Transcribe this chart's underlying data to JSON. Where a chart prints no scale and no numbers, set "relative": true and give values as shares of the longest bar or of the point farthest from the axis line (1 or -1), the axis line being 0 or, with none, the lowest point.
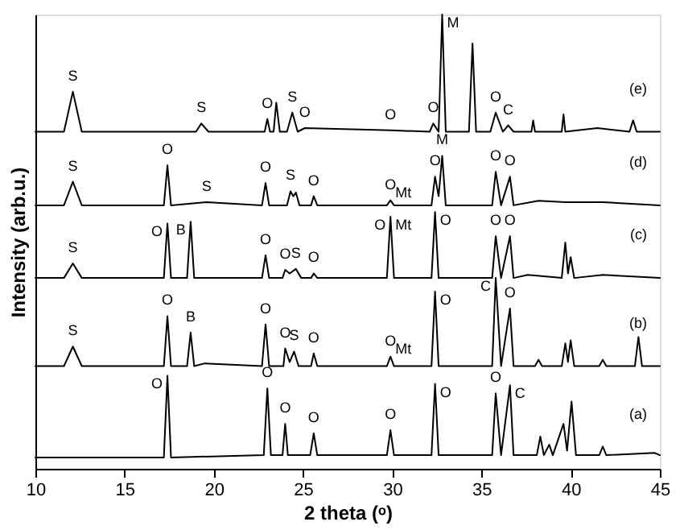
{
  "chart_data": {
    "type": "line",
    "relative": true,
    "xlabel": "2 theta (ᵒ)",
    "ylabel": "Intensity (arb.u.)",
    "xlim": [
      10,
      45
    ],
    "xticks": [
      10,
      15,
      20,
      25,
      30,
      35,
      40,
      45
    ],
    "grid": false,
    "marker": "none",
    "line_style": "solid",
    "series": [
      {
        "color": "#000000",
        "x": [
          10,
          17.2,
          17.4,
          17.6,
          22.8,
          23.0,
          23.2,
          23.85,
          24.0,
          24.15,
          25.4,
          25.6,
          25.8,
          29.7,
          29.9,
          30.1,
          32.2,
          32.4,
          32.6,
          35.6,
          35.8,
          36.1,
          36.6,
          36.8,
          38.1,
          38.3,
          38.5,
          38.8,
          39.0,
          39.6,
          39.8,
          40.05,
          40.3,
          41.6,
          41.8,
          42.0,
          44.7,
          45
        ],
        "values": [
          0.025,
          0.025,
          0.205,
          0.025,
          0.03,
          0.177,
          0.03,
          0.03,
          0.099,
          0.03,
          0.03,
          0.078,
          0.03,
          0.03,
          0.085,
          0.03,
          0.03,
          0.187,
          0.03,
          0.03,
          0.166,
          0.03,
          0.184,
          0.03,
          0.03,
          0.071,
          0.03,
          0.053,
          0.03,
          0.099,
          0.04,
          0.148,
          0.03,
          0.03,
          0.049,
          0.03,
          0.035,
          0.03
        ]
      },
      {
        "color": "#000000",
        "x": [
          10,
          11.6,
          12.1,
          12.6,
          17.2,
          17.4,
          17.6,
          18.5,
          18.7,
          18.9,
          19.5,
          22.7,
          22.9,
          23.1,
          23.9,
          24.0,
          24.25,
          24.5,
          24.75,
          25.45,
          25.6,
          25.8,
          29.7,
          29.9,
          30.1,
          32.2,
          32.4,
          32.6,
          35.6,
          35.8,
          36.1,
          36.6,
          36.8,
          38.0,
          38.2,
          38.4,
          39.5,
          39.7,
          39.85,
          40.0,
          40.2,
          41.6,
          41.8,
          42.0,
          43.6,
          43.8,
          44.0,
          45
        ],
        "values": [
          0.226,
          0.226,
          0.269,
          0.226,
          0.226,
          0.336,
          0.226,
          0.226,
          0.3,
          0.226,
          0.232,
          0.226,
          0.318,
          0.226,
          0.226,
          0.265,
          0.235,
          0.258,
          0.226,
          0.226,
          0.254,
          0.226,
          0.226,
          0.247,
          0.226,
          0.226,
          0.39,
          0.226,
          0.226,
          0.42,
          0.226,
          0.353,
          0.226,
          0.226,
          0.24,
          0.226,
          0.226,
          0.276,
          0.235,
          0.283,
          0.226,
          0.226,
          0.24,
          0.226,
          0.226,
          0.29,
          0.226,
          0.226
        ]
      },
      {
        "color": "#000000",
        "x": [
          10,
          11.6,
          12.1,
          12.6,
          17.2,
          17.4,
          17.6,
          18.5,
          18.7,
          18.9,
          22.7,
          22.9,
          23.1,
          23.85,
          24.0,
          24.25,
          24.6,
          24.9,
          25.45,
          25.6,
          25.8,
          29.7,
          29.9,
          30.1,
          32.2,
          32.4,
          32.6,
          35.6,
          35.8,
          36.1,
          36.6,
          36.8,
          37.6,
          39.5,
          39.7,
          39.85,
          40.0,
          40.2,
          41.8,
          45
        ],
        "values": [
          0.42,
          0.42,
          0.452,
          0.42,
          0.42,
          0.54,
          0.42,
          0.42,
          0.544,
          0.42,
          0.42,
          0.47,
          0.42,
          0.42,
          0.438,
          0.43,
          0.44,
          0.42,
          0.42,
          0.43,
          0.42,
          0.42,
          0.555,
          0.42,
          0.42,
          0.565,
          0.42,
          0.42,
          0.512,
          0.42,
          0.512,
          0.42,
          0.427,
          0.42,
          0.498,
          0.43,
          0.466,
          0.42,
          0.427,
          0.42
        ]
      },
      {
        "color": "#000000",
        "x": [
          10,
          11.6,
          12.1,
          12.6,
          17.2,
          17.4,
          17.6,
          19.6,
          22.7,
          22.9,
          23.1,
          24.1,
          24.3,
          24.45,
          24.6,
          24.8,
          25.45,
          25.6,
          25.8,
          29.7,
          29.9,
          30.1,
          32.2,
          32.4,
          32.6,
          32.8,
          33.0,
          35.6,
          35.8,
          36.1,
          36.6,
          36.8,
          38.2,
          39.7,
          41.8,
          45
        ],
        "values": [
          0.58,
          0.58,
          0.632,
          0.58,
          0.58,
          0.668,
          0.58,
          0.587,
          0.58,
          0.629,
          0.58,
          0.58,
          0.611,
          0.6,
          0.608,
          0.58,
          0.58,
          0.6,
          0.58,
          0.58,
          0.591,
          0.58,
          0.58,
          0.643,
          0.6,
          0.689,
          0.58,
          0.58,
          0.654,
          0.58,
          0.643,
          0.58,
          0.59,
          0.587,
          0.587,
          0.58
        ]
      },
      {
        "color": "#000000",
        "x": [
          10,
          11.6,
          12.1,
          12.6,
          19.0,
          19.3,
          19.7,
          22.85,
          23.0,
          23.15,
          23.35,
          23.5,
          23.7,
          24.1,
          24.4,
          24.7,
          25.1,
          29.9,
          32.1,
          32.3,
          32.6,
          32.8,
          33.0,
          34.3,
          34.5,
          34.7,
          35.5,
          35.8,
          36.2,
          36.5,
          36.8,
          37.8,
          37.9,
          38.0,
          39.5,
          39.6,
          39.7,
          41.5,
          43.3,
          43.5,
          43.7,
          45
        ],
        "values": [
          0.742,
          0.742,
          0.83,
          0.742,
          0.742,
          0.76,
          0.742,
          0.742,
          0.77,
          0.742,
          0.742,
          0.806,
          0.742,
          0.742,
          0.784,
          0.742,
          0.75,
          0.745,
          0.742,
          0.76,
          0.742,
          1.0,
          0.742,
          0.742,
          0.936,
          0.742,
          0.742,
          0.784,
          0.742,
          0.756,
          0.742,
          0.742,
          0.767,
          0.742,
          0.742,
          0.78,
          0.742,
          0.75,
          0.742,
          0.767,
          0.742,
          0.742
        ]
      }
    ],
    "annotations": [
      "(e)",
      "(d)",
      "(c)",
      "(b)",
      "(a)",
      {
        "text": "S",
        "x": 12.1,
        "y": 0.83
      },
      {
        "text": "S",
        "x": 19.3,
        "y": 0.76
      },
      {
        "text": "O",
        "x": 23.0,
        "y": 0.77
      },
      {
        "text": "S",
        "x": 24.4,
        "y": 0.784
      },
      {
        "text": "O",
        "x": 25.1,
        "y": 0.75
      },
      {
        "text": "O",
        "x": 29.9,
        "y": 0.745
      },
      {
        "text": "O",
        "x": 32.3,
        "y": 0.76
      },
      {
        "text": "M",
        "x": 32.8,
        "y": 1.0
      },
      {
        "text": "O",
        "x": 35.8,
        "y": 0.784
      },
      {
        "text": "C",
        "x": 36.5,
        "y": 0.756
      },
      {
        "text": "S",
        "x": 12.1,
        "y": 0.632
      },
      {
        "text": "O",
        "x": 17.4,
        "y": 0.668
      },
      {
        "text": "S",
        "x": 19.6,
        "y": 0.587
      },
      {
        "text": "O",
        "x": 22.9,
        "y": 0.629
      },
      {
        "text": "S",
        "x": 24.3,
        "y": 0.611
      },
      {
        "text": "O",
        "x": 25.6,
        "y": 0.6
      },
      {
        "text": "O",
        "x": 29.9,
        "y": 0.591
      },
      {
        "text": "Mt",
        "x": 29.9,
        "y": 0.591
      },
      {
        "text": "O",
        "x": 32.4,
        "y": 0.643
      },
      {
        "text": "M",
        "x": 32.8,
        "y": 0.689
      },
      {
        "text": "O",
        "x": 35.8,
        "y": 0.654
      },
      {
        "text": "O",
        "x": 36.6,
        "y": 0.643
      },
      {
        "text": "S",
        "x": 12.1,
        "y": 0.452
      },
      {
        "text": "O",
        "x": 17.4,
        "y": 0.54
      },
      {
        "text": "B",
        "x": 18.7,
        "y": 0.544
      },
      {
        "text": "O",
        "x": 22.9,
        "y": 0.47
      },
      {
        "text": "O",
        "x": 24.0,
        "y": 0.438
      },
      {
        "text": "S",
        "x": 24.6,
        "y": 0.44
      },
      {
        "text": "O",
        "x": 25.6,
        "y": 0.43
      },
      {
        "text": "O",
        "x": 29.9,
        "y": 0.555
      },
      {
        "text": "Mt",
        "x": 29.9,
        "y": 0.555
      },
      {
        "text": "O",
        "x": 32.4,
        "y": 0.565
      },
      {
        "text": "O",
        "x": 35.8,
        "y": 0.512
      },
      {
        "text": "O",
        "x": 36.6,
        "y": 0.512
      },
      {
        "text": "S",
        "x": 12.1,
        "y": 0.269
      },
      {
        "text": "O",
        "x": 17.4,
        "y": 0.336
      },
      {
        "text": "B",
        "x": 18.7,
        "y": 0.3
      },
      {
        "text": "O",
        "x": 22.9,
        "y": 0.318
      },
      {
        "text": "O",
        "x": 24.0,
        "y": 0.265
      },
      {
        "text": "S",
        "x": 24.5,
        "y": 0.258
      },
      {
        "text": "O",
        "x": 25.6,
        "y": 0.254
      },
      {
        "text": "O",
        "x": 29.9,
        "y": 0.247
      },
      {
        "text": "Mt",
        "x": 29.9,
        "y": 0.247
      },
      {
        "text": "O",
        "x": 32.4,
        "y": 0.39
      },
      {
        "text": "C",
        "x": 35.8,
        "y": 0.42
      },
      {
        "text": "O",
        "x": 36.6,
        "y": 0.353
      },
      {
        "text": "O",
        "x": 17.4,
        "y": 0.205
      },
      {
        "text": "O",
        "x": 23.0,
        "y": 0.177
      },
      {
        "text": "O",
        "x": 24.0,
        "y": 0.099
      },
      {
        "text": "O",
        "x": 25.6,
        "y": 0.078
      },
      {
        "text": "O",
        "x": 29.9,
        "y": 0.085
      },
      {
        "text": "O",
        "x": 32.4,
        "y": 0.187
      },
      {
        "text": "O",
        "x": 35.8,
        "y": 0.166
      },
      {
        "text": "C",
        "x": 36.6,
        "y": 0.184
      }
    ]
  }
}
